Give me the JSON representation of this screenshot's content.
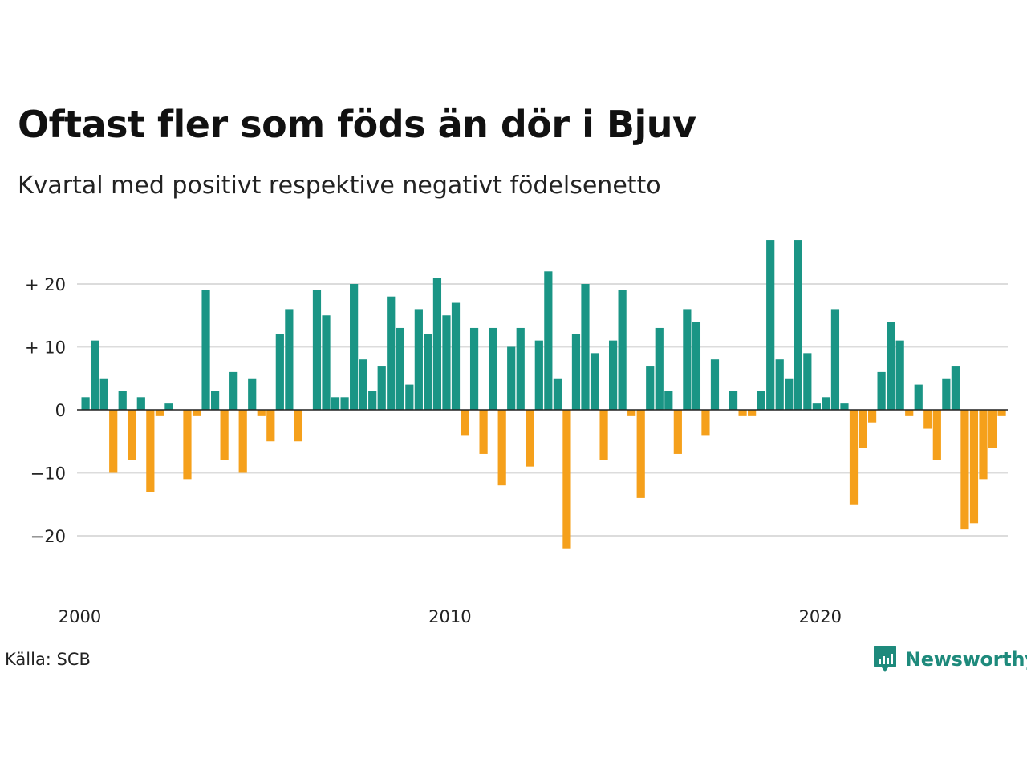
{
  "title": "Oftast fler som föds än dör i Bjuv",
  "subtitle": "Kvartal med positivt respektive negativt födelsenetto",
  "source": "Källa: SCB",
  "brand": {
    "name": "Newsworthy",
    "icon": "newsworthy-logo-icon"
  },
  "colors": {
    "positive": "#1a9585",
    "negative": "#f5a01b",
    "grid": "#dcdcdc",
    "zero": "#222222"
  },
  "chart_data": {
    "type": "bar",
    "xlabel": "",
    "ylabel": "",
    "x_ticks": [
      2000,
      2010,
      2020
    ],
    "y_ticks": [
      {
        "value": 20,
        "label": "+ 20"
      },
      {
        "value": 10,
        "label": "+ 10"
      },
      {
        "value": 0,
        "label": "0"
      },
      {
        "value": -10,
        "label": "−10"
      },
      {
        "value": -20,
        "label": "−20"
      }
    ],
    "ylim": [
      -24,
      28
    ],
    "start": "2000 Q1",
    "values": [
      2,
      11,
      5,
      -10,
      3,
      -8,
      2,
      -13,
      -1,
      1,
      0,
      -11,
      -1,
      19,
      3,
      -8,
      6,
      -10,
      5,
      -1,
      -5,
      12,
      16,
      -5,
      0,
      19,
      15,
      2,
      2,
      20,
      8,
      3,
      7,
      18,
      13,
      4,
      16,
      12,
      21,
      15,
      17,
      -4,
      13,
      -7,
      13,
      -12,
      10,
      13,
      -9,
      11,
      22,
      5,
      -22,
      12,
      20,
      9,
      -8,
      11,
      19,
      -1,
      -14,
      7,
      13,
      3,
      -7,
      16,
      14,
      -4,
      8,
      0,
      3,
      -1,
      -1,
      3,
      27,
      8,
      5,
      27,
      9,
      1,
      2,
      16,
      1,
      -15,
      -6,
      -2,
      6,
      14,
      11,
      -1,
      4,
      -3,
      -8,
      5,
      7,
      -19,
      -18,
      -11,
      -6,
      -1
    ]
  }
}
